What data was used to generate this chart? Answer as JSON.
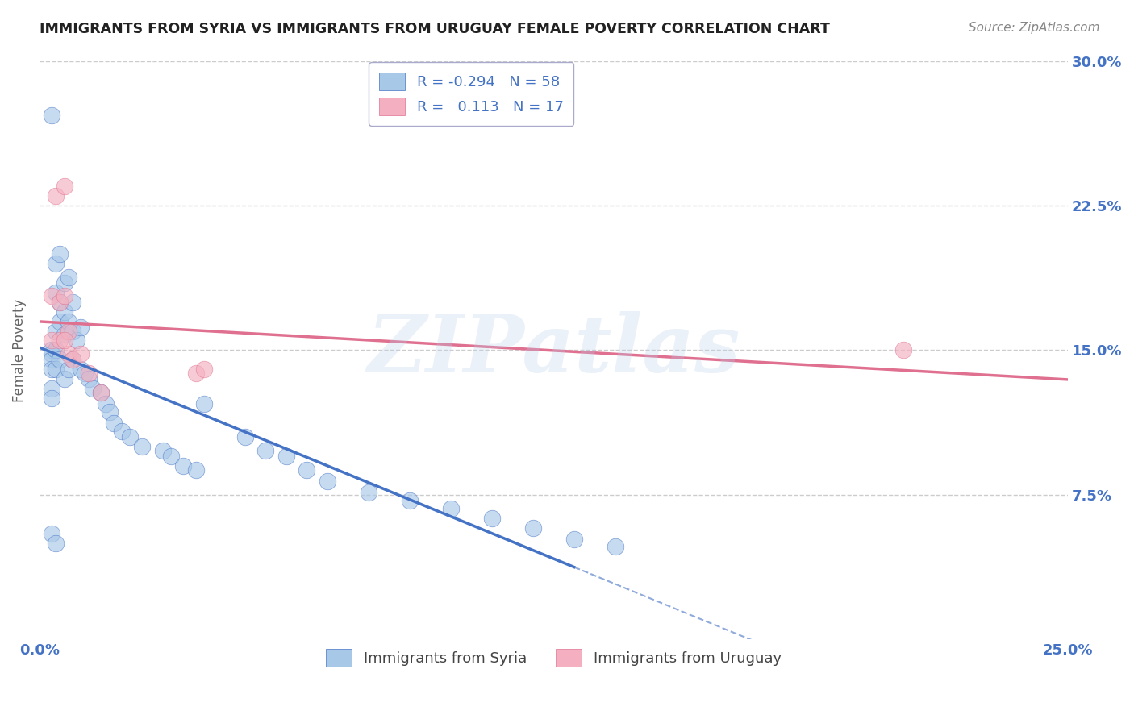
{
  "title": "IMMIGRANTS FROM SYRIA VS IMMIGRANTS FROM URUGUAY FEMALE POVERTY CORRELATION CHART",
  "source": "Source: ZipAtlas.com",
  "ylabel": "Female Poverty",
  "xlim": [
    0.0,
    0.25
  ],
  "ylim": [
    0.0,
    0.3
  ],
  "xtick_positions": [
    0.0,
    0.05,
    0.1,
    0.15,
    0.2,
    0.25
  ],
  "xtick_labels": [
    "0.0%",
    "",
    "",
    "",
    "",
    "25.0%"
  ],
  "ytick_positions": [
    0.0,
    0.075,
    0.15,
    0.225,
    0.3
  ],
  "ytick_labels": [
    "",
    "7.5%",
    "15.0%",
    "22.5%",
    "30.0%"
  ],
  "syria_R": "-0.294",
  "syria_N": "58",
  "uruguay_R": "0.113",
  "uruguay_N": "17",
  "syria_color": "#a8c8e8",
  "uruguay_color": "#f4b0c0",
  "syria_line_color": "#4472c4",
  "uruguay_line_color": "#e07090",
  "watermark": "ZIPatlas",
  "legend_syria_label": "Immigrants from Syria",
  "legend_uruguay_label": "Immigrants from Uruguay",
  "syria_x": [
    0.003,
    0.003,
    0.003,
    0.003,
    0.003,
    0.003,
    0.003,
    0.004,
    0.004,
    0.004,
    0.004,
    0.004,
    0.005,
    0.005,
    0.005,
    0.005,
    0.006,
    0.006,
    0.006,
    0.006,
    0.007,
    0.007,
    0.007,
    0.008,
    0.008,
    0.008,
    0.009,
    0.01,
    0.01,
    0.011,
    0.012,
    0.013,
    0.015,
    0.016,
    0.017,
    0.018,
    0.02,
    0.022,
    0.025,
    0.03,
    0.032,
    0.035,
    0.038,
    0.04,
    0.05,
    0.055,
    0.06,
    0.065,
    0.07,
    0.08,
    0.09,
    0.1,
    0.11,
    0.12,
    0.13,
    0.14,
    0.003,
    0.004
  ],
  "syria_y": [
    0.272,
    0.15,
    0.148,
    0.145,
    0.14,
    0.13,
    0.125,
    0.195,
    0.18,
    0.16,
    0.15,
    0.14,
    0.2,
    0.175,
    0.165,
    0.145,
    0.185,
    0.17,
    0.158,
    0.135,
    0.188,
    0.165,
    0.14,
    0.175,
    0.16,
    0.145,
    0.155,
    0.162,
    0.14,
    0.138,
    0.135,
    0.13,
    0.128,
    0.122,
    0.118,
    0.112,
    0.108,
    0.105,
    0.1,
    0.098,
    0.095,
    0.09,
    0.088,
    0.122,
    0.105,
    0.098,
    0.095,
    0.088,
    0.082,
    0.076,
    0.072,
    0.068,
    0.063,
    0.058,
    0.052,
    0.048,
    0.055,
    0.05
  ],
  "uruguay_x": [
    0.003,
    0.003,
    0.004,
    0.005,
    0.005,
    0.006,
    0.006,
    0.007,
    0.007,
    0.008,
    0.01,
    0.012,
    0.015,
    0.038,
    0.04,
    0.006,
    0.21
  ],
  "uruguay_y": [
    0.178,
    0.155,
    0.23,
    0.175,
    0.155,
    0.235,
    0.178,
    0.16,
    0.148,
    0.145,
    0.148,
    0.138,
    0.128,
    0.138,
    0.14,
    0.155,
    0.15
  ],
  "syria_line_solid_end_x": 0.13,
  "tick_color": "#4472c4",
  "grid_color": "#cccccc",
  "ylabel_color": "#666666",
  "title_color": "#222222",
  "source_color": "#888888"
}
